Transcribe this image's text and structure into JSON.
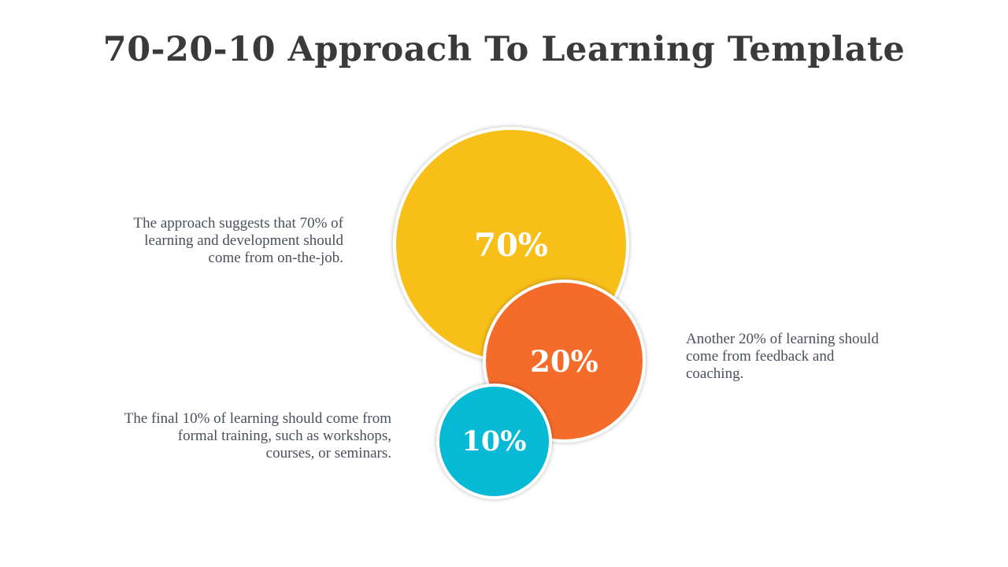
{
  "title": "70-20-10 Approach To Learning Template",
  "segments": [
    {
      "id": "70",
      "label": "70%",
      "value": 70,
      "color": "#f8bf19",
      "description": "The approach suggests that 70% of\nlearning and development should\ncome from on-the-job."
    },
    {
      "id": "20",
      "label": "20%",
      "value": 20,
      "color": "#f56b29",
      "description": "Another 20% of learning should\ncome from feedback and\ncoaching."
    },
    {
      "id": "10",
      "label": "10%",
      "value": 10,
      "color": "#06bad6",
      "description": "The final 10% of learning should come from\nformal training, such as workshops,\ncourses, or seminars."
    }
  ]
}
